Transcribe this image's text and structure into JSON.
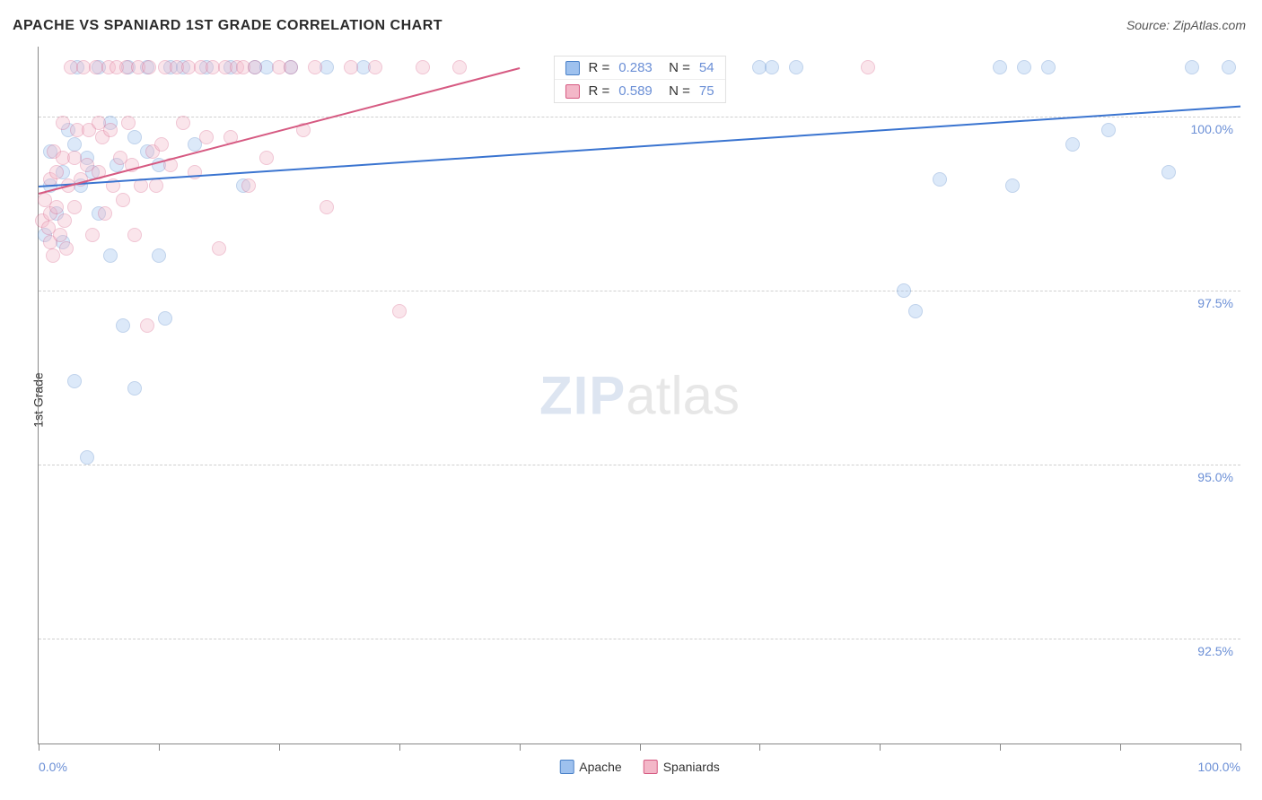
{
  "title": "APACHE VS SPANIARD 1ST GRADE CORRELATION CHART",
  "source_label": "Source: ZipAtlas.com",
  "y_axis_label": "1st Grade",
  "watermark": {
    "part1": "ZIP",
    "part2": "atlas"
  },
  "chart": {
    "type": "scatter",
    "background_color": "#ffffff",
    "grid_color": "#d0d0d0",
    "axis_color": "#888888",
    "xlim": [
      0,
      100
    ],
    "ylim": [
      91,
      101
    ],
    "x_tick_positions": [
      0,
      10,
      20,
      30,
      40,
      50,
      60,
      70,
      80,
      90,
      100
    ],
    "y_ticks": [
      {
        "value": 100.0,
        "label": "100.0%"
      },
      {
        "value": 97.5,
        "label": "97.5%"
      },
      {
        "value": 95.0,
        "label": "95.0%"
      },
      {
        "value": 92.5,
        "label": "92.5%"
      }
    ],
    "x_axis_labels": {
      "left": "0.0%",
      "right": "100.0%"
    },
    "label_color": "#6b8fd6",
    "label_fontsize": 14,
    "title_fontsize": 16,
    "point_radius": 8,
    "point_opacity": 0.35,
    "series": [
      {
        "id": "apache",
        "label": "Apache",
        "fill_color": "#9ec1ee",
        "stroke_color": "#4a81c8",
        "R": "0.283",
        "N": "54",
        "trend": {
          "x1": 0,
          "y1": 99.0,
          "x2": 100,
          "y2": 100.15,
          "color": "#3a74d0",
          "width": 2
        },
        "points": [
          [
            0.5,
            98.3
          ],
          [
            1,
            99.0
          ],
          [
            1,
            99.5
          ],
          [
            1.5,
            98.6
          ],
          [
            2,
            98.2
          ],
          [
            2,
            99.2
          ],
          [
            2.5,
            99.8
          ],
          [
            3,
            96.2
          ],
          [
            3,
            99.6
          ],
          [
            3.2,
            100.7
          ],
          [
            3.5,
            99.0
          ],
          [
            4,
            95.1
          ],
          [
            4,
            99.4
          ],
          [
            4.5,
            99.2
          ],
          [
            5,
            98.6
          ],
          [
            5,
            100.7
          ],
          [
            6,
            98.0
          ],
          [
            6,
            99.9
          ],
          [
            6.5,
            99.3
          ],
          [
            7,
            97.0
          ],
          [
            7.5,
            100.7
          ],
          [
            8,
            99.7
          ],
          [
            8,
            96.1
          ],
          [
            9,
            99.5
          ],
          [
            9,
            100.7
          ],
          [
            10,
            98.0
          ],
          [
            10,
            99.3
          ],
          [
            10.5,
            97.1
          ],
          [
            11,
            100.7
          ],
          [
            12,
            100.7
          ],
          [
            13,
            99.6
          ],
          [
            14,
            100.7
          ],
          [
            16,
            100.7
          ],
          [
            17,
            99.0
          ],
          [
            18,
            100.7
          ],
          [
            19,
            100.7
          ],
          [
            21,
            100.7
          ],
          [
            24,
            100.7
          ],
          [
            27,
            100.7
          ],
          [
            60,
            100.7
          ],
          [
            61,
            100.7
          ],
          [
            63,
            100.7
          ],
          [
            72,
            97.5
          ],
          [
            73,
            97.2
          ],
          [
            75,
            99.1
          ],
          [
            80,
            100.7
          ],
          [
            81,
            99.0
          ],
          [
            82,
            100.7
          ],
          [
            84,
            100.7
          ],
          [
            86,
            99.6
          ],
          [
            89,
            99.8
          ],
          [
            94,
            99.2
          ],
          [
            96,
            100.7
          ],
          [
            99,
            100.7
          ]
        ]
      },
      {
        "id": "spaniards",
        "label": "Spaniards",
        "fill_color": "#f3b7c8",
        "stroke_color": "#d65a82",
        "R": "0.589",
        "N": "75",
        "trend": {
          "x1": 0,
          "y1": 98.9,
          "x2": 40,
          "y2": 100.7,
          "color": "#d65a82",
          "width": 2
        },
        "points": [
          [
            0.3,
            98.5
          ],
          [
            0.5,
            98.8
          ],
          [
            0.8,
            98.4
          ],
          [
            1,
            98.2
          ],
          [
            1,
            98.6
          ],
          [
            1,
            99.1
          ],
          [
            1.2,
            98.0
          ],
          [
            1.3,
            99.5
          ],
          [
            1.5,
            98.7
          ],
          [
            1.5,
            99.2
          ],
          [
            1.8,
            98.3
          ],
          [
            2,
            99.4
          ],
          [
            2,
            99.9
          ],
          [
            2.2,
            98.5
          ],
          [
            2.3,
            98.1
          ],
          [
            2.5,
            99.0
          ],
          [
            2.7,
            100.7
          ],
          [
            3,
            98.7
          ],
          [
            3,
            99.4
          ],
          [
            3.2,
            99.8
          ],
          [
            3.5,
            99.1
          ],
          [
            3.7,
            100.7
          ],
          [
            4,
            99.3
          ],
          [
            4.2,
            99.8
          ],
          [
            4.5,
            98.3
          ],
          [
            4.8,
            100.7
          ],
          [
            5,
            99.9
          ],
          [
            5,
            99.2
          ],
          [
            5.3,
            99.7
          ],
          [
            5.5,
            98.6
          ],
          [
            5.8,
            100.7
          ],
          [
            6,
            99.8
          ],
          [
            6.2,
            99.0
          ],
          [
            6.5,
            100.7
          ],
          [
            6.8,
            99.4
          ],
          [
            7,
            98.8
          ],
          [
            7.3,
            100.7
          ],
          [
            7.5,
            99.9
          ],
          [
            7.8,
            99.3
          ],
          [
            8,
            98.3
          ],
          [
            8.3,
            100.7
          ],
          [
            8.5,
            99.0
          ],
          [
            9,
            97.0
          ],
          [
            9.2,
            100.7
          ],
          [
            9.5,
            99.5
          ],
          [
            9.8,
            99.0
          ],
          [
            10.2,
            99.6
          ],
          [
            10.5,
            100.7
          ],
          [
            11,
            99.3
          ],
          [
            11.5,
            100.7
          ],
          [
            12,
            99.9
          ],
          [
            12.5,
            100.7
          ],
          [
            13,
            99.2
          ],
          [
            13.5,
            100.7
          ],
          [
            14,
            99.7
          ],
          [
            14.5,
            100.7
          ],
          [
            15,
            98.1
          ],
          [
            15.5,
            100.7
          ],
          [
            16,
            99.7
          ],
          [
            16.5,
            100.7
          ],
          [
            17,
            100.7
          ],
          [
            17.5,
            99.0
          ],
          [
            18,
            100.7
          ],
          [
            19,
            99.4
          ],
          [
            20,
            100.7
          ],
          [
            21,
            100.7
          ],
          [
            22,
            99.8
          ],
          [
            23,
            100.7
          ],
          [
            24,
            98.7
          ],
          [
            26,
            100.7
          ],
          [
            28,
            100.7
          ],
          [
            30,
            97.2
          ],
          [
            32,
            100.7
          ],
          [
            35,
            100.7
          ],
          [
            69,
            100.7
          ]
        ]
      }
    ]
  },
  "bottom_legend": [
    {
      "series": "apache",
      "label": "Apache"
    },
    {
      "series": "spaniards",
      "label": "Spaniards"
    }
  ]
}
